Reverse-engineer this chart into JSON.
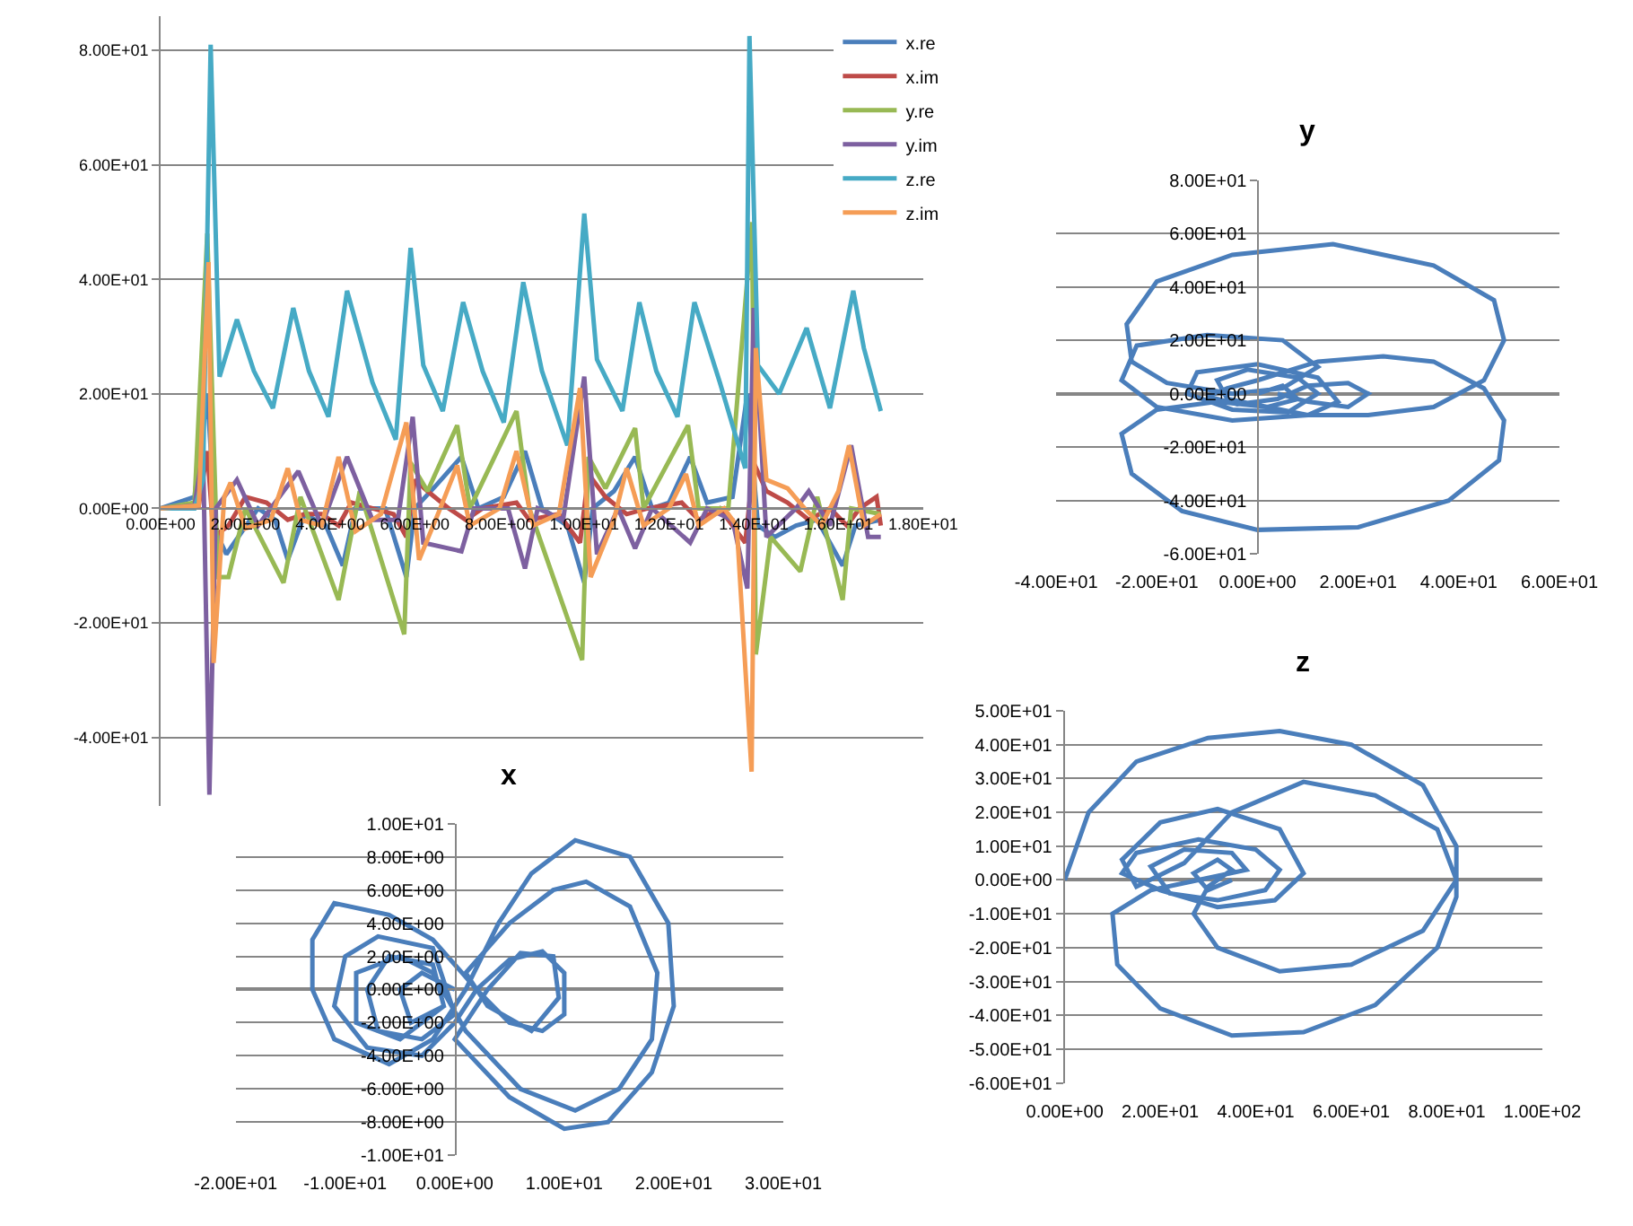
{
  "chart_data": [
    {
      "type": "line",
      "marker": "none",
      "line_style": "solid",
      "grid": "y",
      "legend": "top right",
      "xlim": [
        0,
        18
      ],
      "xticks": [
        {
          "value": 0,
          "label": "0.00E+00"
        },
        {
          "value": 2,
          "label": "2.00E+00"
        },
        {
          "value": 4,
          "label": "4.00E+00"
        },
        {
          "value": 6,
          "label": "6.00E+00"
        },
        {
          "value": 8,
          "label": "8.00E+00"
        },
        {
          "value": 10,
          "label": "1.00E+01"
        },
        {
          "value": 12,
          "label": "1.20E+01"
        },
        {
          "value": 14,
          "label": "1.40E+01"
        },
        {
          "value": 16,
          "label": "1.60E+01"
        },
        {
          "value": 18,
          "label": "1.80E+01"
        }
      ],
      "ylim": [
        -52,
        86
      ],
      "yticks": [
        {
          "value": -40,
          "label": "-4.00E+01"
        },
        {
          "value": -20,
          "label": "-2.00E+01"
        },
        {
          "value": 0,
          "label": "0.00E+00"
        },
        {
          "value": 20,
          "label": "2.00E+01"
        },
        {
          "value": 40,
          "label": "4.00E+01"
        },
        {
          "value": 60,
          "label": "6.00E+01"
        },
        {
          "value": 80,
          "label": "8.00E+01"
        }
      ],
      "series": [
        {
          "name": "x.re",
          "color": "#4a7ebb",
          "x": [
            0,
            0.8,
            1.1,
            1.3,
            1.55,
            2.3,
            2.7,
            3.0,
            3.4,
            3.9,
            4.3,
            4.6,
            5.3,
            5.8,
            6.0,
            6.5,
            7.1,
            7.5,
            8.1,
            8.6,
            9.0,
            9.6,
            10.0,
            10.2,
            10.7,
            11.2,
            11.6,
            12.0,
            12.5,
            12.9,
            13.5,
            13.85,
            14.1,
            14.5,
            15.0,
            15.5,
            16.1,
            16.4,
            17.0
          ],
          "values": [
            0,
            2,
            20,
            -4,
            -8,
            0,
            -2,
            -9,
            -1,
            -3,
            -10,
            0,
            0,
            -12,
            0,
            4,
            9,
            0,
            2,
            10,
            0,
            -3,
            -13,
            0,
            3,
            9,
            0,
            1,
            9,
            1,
            2,
            20,
            -3,
            -5,
            -3,
            -2,
            -10,
            -3,
            -2
          ]
        },
        {
          "name": "x.im",
          "color": "#be4b48",
          "x": [
            0,
            0.9,
            1.1,
            1.25,
            1.6,
            2.0,
            2.5,
            3.0,
            3.4,
            3.8,
            4.2,
            4.5,
            5.0,
            5.5,
            5.8,
            6.0,
            6.3,
            6.8,
            7.2,
            7.6,
            8.4,
            8.7,
            9.4,
            9.9,
            10.1,
            10.5,
            11.0,
            11.5,
            12.3,
            12.7,
            13.2,
            13.8,
            14.0,
            14.3,
            14.8,
            15.3,
            15.8,
            16.2,
            16.5,
            16.9,
            17.0
          ],
          "values": [
            0,
            0.5,
            10,
            -5,
            -3,
            2,
            1,
            -2,
            -1,
            -1,
            -3,
            1,
            0,
            -1,
            -5,
            5,
            3,
            0,
            -2,
            0,
            1,
            -2,
            -1,
            -6,
            6,
            2,
            -1,
            0,
            1,
            -2,
            0,
            -6,
            8,
            3,
            1,
            -2,
            0,
            -3,
            0,
            2,
            -3
          ]
        },
        {
          "name": "y.re",
          "color": "#98b954",
          "x": [
            0,
            0.8,
            1.1,
            1.35,
            1.6,
            2.0,
            2.9,
            3.3,
            4.2,
            4.7,
            5.75,
            5.9,
            6.3,
            7.0,
            7.3,
            8.4,
            8.7,
            9.95,
            10.1,
            10.5,
            11.2,
            11.4,
            12.45,
            12.7,
            13.4,
            13.96,
            14.05,
            14.4,
            15.1,
            15.5,
            16.1,
            16.3,
            17.0
          ],
          "values": [
            0,
            1,
            48,
            -12,
            -12,
            0,
            -13,
            2,
            -16,
            3,
            -22,
            8,
            3,
            14.5,
            0,
            17,
            0,
            -26.5,
            9,
            3.5,
            14,
            0,
            14.5,
            0,
            0,
            50,
            -25.5,
            -5,
            -11,
            2,
            -16,
            0,
            -1
          ]
        },
        {
          "name": "y.im",
          "color": "#7d60a0",
          "x": [
            0,
            0.8,
            1.0,
            1.15,
            1.3,
            1.8,
            2.3,
            3.25,
            3.8,
            4.4,
            5.0,
            5.6,
            5.95,
            6.2,
            7.1,
            7.4,
            8.2,
            8.6,
            8.9,
            9.5,
            10.0,
            10.3,
            10.8,
            11.2,
            11.6,
            12.5,
            12.9,
            13.5,
            13.85,
            14.0,
            14.3,
            15.0,
            15.3,
            15.8,
            16.3,
            16.7,
            17.0
          ],
          "values": [
            0,
            0.5,
            10,
            -50,
            0,
            5,
            -3,
            6.5,
            -3,
            9,
            -2,
            -2,
            16,
            -6,
            -7.5,
            0,
            0,
            -10.5,
            0,
            -2,
            23,
            -8,
            0,
            -7,
            0,
            -6,
            0,
            -2,
            -14,
            35,
            -5,
            0,
            3,
            -3,
            11,
            -5,
            -5
          ]
        },
        {
          "name": "z.re",
          "color": "#46aac5",
          "x": [
            0,
            0.8,
            1.0,
            1.18,
            1.39,
            1.8,
            2.2,
            2.65,
            3.13,
            3.5,
            3.96,
            4.4,
            5.0,
            5.55,
            5.9,
            6.2,
            6.66,
            7.14,
            7.6,
            8.1,
            8.56,
            9.0,
            9.6,
            10.0,
            10.3,
            10.9,
            11.3,
            11.7,
            12.2,
            12.6,
            13.2,
            13.8,
            13.9,
            14.1,
            14.6,
            15.25,
            15.8,
            16.35,
            16.6,
            17.0
          ],
          "values": [
            0,
            0,
            5,
            81,
            23,
            33,
            24,
            17.5,
            35,
            24,
            16,
            38,
            22,
            12,
            45.5,
            25,
            17,
            36,
            24,
            15,
            39.5,
            24,
            11,
            51.5,
            26,
            17,
            36,
            24,
            16,
            36,
            22,
            7,
            82.5,
            25,
            20,
            31.5,
            17.5,
            38,
            28,
            17
          ]
        },
        {
          "name": "z.im",
          "color": "#f59d56",
          "x": [
            0,
            0.9,
            1.13,
            1.25,
            1.5,
            1.65,
            2.0,
            2.6,
            3.0,
            3.3,
            3.8,
            4.2,
            4.6,
            5.2,
            5.8,
            6.1,
            6.6,
            7.0,
            7.3,
            8.0,
            8.4,
            8.8,
            9.4,
            9.9,
            10.15,
            10.7,
            11.0,
            11.4,
            12.0,
            12.4,
            12.7,
            13.3,
            13.6,
            13.95,
            14.05,
            14.3,
            14.8,
            15.2,
            15.6,
            16.0,
            16.25,
            16.6,
            17.0
          ],
          "values": [
            0,
            0.5,
            43,
            -27,
            2,
            4.5,
            -3.5,
            -2,
            7,
            -2,
            -3,
            9,
            -4,
            -1,
            15,
            -9,
            0,
            7.5,
            -3,
            0,
            10,
            -3,
            -1,
            21,
            -12,
            -2,
            7,
            -3,
            0,
            6,
            -3,
            0,
            -3,
            -46,
            28,
            5,
            3.5,
            0,
            -3,
            3,
            11,
            -3,
            -1
          ]
        }
      ]
    },
    {
      "type": "line",
      "title": "y",
      "marker": "none",
      "line_style": "solid",
      "grid": "y",
      "xlim": [
        -40,
        60
      ],
      "xticks": [
        {
          "value": -40,
          "label": "-4.00E+01"
        },
        {
          "value": -20,
          "label": "-2.00E+01"
        },
        {
          "value": 0,
          "label": "0.00E+00"
        },
        {
          "value": 20,
          "label": "2.00E+01"
        },
        {
          "value": 40,
          "label": "4.00E+01"
        },
        {
          "value": 60,
          "label": "6.00E+01"
        }
      ],
      "ylim": [
        -60,
        80
      ],
      "yticks": [
        {
          "value": -60,
          "label": "-6.00E+01"
        },
        {
          "value": -40,
          "label": "-4.00E+01"
        },
        {
          "value": -20,
          "label": "-2.00E+01"
        },
        {
          "value": 0,
          "label": "0.00E+00"
        },
        {
          "value": 20,
          "label": "2.00E+01"
        },
        {
          "value": 40,
          "label": "4.00E+01"
        },
        {
          "value": 60,
          "label": "6.00E+01"
        },
        {
          "value": 80,
          "label": "8.00E+01"
        }
      ],
      "series": [
        {
          "color": "#4a7ebb",
          "x": [
            0,
            5,
            8,
            2,
            -6,
            -8,
            -2,
            8,
            12,
            6,
            -5,
            -14,
            -12,
            0,
            12,
            16,
            10,
            -5,
            -20,
            -27,
            -24,
            -10,
            5,
            12,
            5,
            -5,
            -18,
            -25,
            -26,
            -20,
            -5,
            15,
            35,
            47,
            49,
            45,
            35,
            22,
            10,
            2,
            -8,
            -20,
            -27,
            -25,
            -15,
            0,
            20,
            38,
            48,
            49,
            45,
            35,
            25,
            12,
            0,
            -6,
            -10,
            -4,
            4,
            10,
            18,
            22,
            18,
            10,
            4
          ],
          "values": [
            0,
            3,
            -2,
            -5,
            -2,
            5,
            9,
            6,
            0,
            -7,
            -6,
            0,
            8,
            11,
            6,
            -3,
            -8,
            -10,
            -5,
            5,
            18,
            22,
            20,
            10,
            2,
            0,
            4,
            12,
            26,
            42,
            52,
            56,
            48,
            35,
            20,
            5,
            -5,
            -8,
            -8,
            -5,
            -3,
            -6,
            -15,
            -30,
            -44,
            -51,
            -50,
            -40,
            -25,
            -10,
            2,
            12,
            14,
            12,
            5,
            2,
            -1,
            -4,
            -2,
            3,
            4,
            0,
            -5,
            -3,
            0
          ]
        }
      ]
    },
    {
      "type": "line",
      "title": "z",
      "marker": "none",
      "line_style": "solid",
      "grid": "y",
      "xlim": [
        0,
        100
      ],
      "xticks": [
        {
          "value": 0,
          "label": "0.00E+00"
        },
        {
          "value": 20,
          "label": "2.00E+01"
        },
        {
          "value": 40,
          "label": "4.00E+01"
        },
        {
          "value": 60,
          "label": "6.00E+01"
        },
        {
          "value": 80,
          "label": "8.00E+01"
        },
        {
          "value": 100,
          "label": "1.00E+02"
        }
      ],
      "ylim": [
        -60,
        50
      ],
      "yticks": [
        {
          "value": -60,
          "label": "-6.00E+01"
        },
        {
          "value": -50,
          "label": "-5.00E+01"
        },
        {
          "value": -40,
          "label": "-4.00E+01"
        },
        {
          "value": -30,
          "label": "-3.00E+01"
        },
        {
          "value": -20,
          "label": "-2.00E+01"
        },
        {
          "value": -10,
          "label": "-1.00E+01"
        },
        {
          "value": 0,
          "label": "0.00E+00"
        },
        {
          "value": 10,
          "label": "1.00E+01"
        },
        {
          "value": 20,
          "label": "2.00E+01"
        },
        {
          "value": 30,
          "label": "3.00E+01"
        },
        {
          "value": 40,
          "label": "4.00E+01"
        },
        {
          "value": 50,
          "label": "5.00E+01"
        }
      ],
      "series": [
        {
          "color": "#4a7ebb",
          "x": [
            0,
            5,
            15,
            30,
            45,
            60,
            75,
            82,
            82,
            78,
            65,
            50,
            35,
            20,
            11,
            10,
            18,
            28,
            38,
            35,
            25,
            18,
            22,
            32,
            42,
            45,
            40,
            28,
            15,
            12,
            20,
            32,
            44,
            50,
            45,
            32,
            20,
            12,
            15,
            25,
            35,
            50,
            65,
            78,
            82,
            75,
            60,
            45,
            32,
            27,
            30,
            35,
            32,
            27,
            30,
            35
          ],
          "values": [
            0,
            20,
            35,
            42,
            44,
            40,
            28,
            10,
            -5,
            -20,
            -37,
            -45,
            -46,
            -38,
            -25,
            -10,
            -3,
            0,
            3,
            8,
            9,
            4,
            -4,
            -6,
            -3,
            3,
            9,
            12,
            8,
            2,
            -3,
            -8,
            -6,
            2,
            15,
            21,
            17,
            6,
            -2,
            5,
            20,
            29,
            25,
            15,
            0,
            -15,
            -25,
            -27,
            -20,
            -10,
            -2,
            3,
            6,
            2,
            -3,
            0
          ]
        }
      ]
    },
    {
      "type": "line",
      "title": "x",
      "marker": "none",
      "line_style": "solid",
      "grid": "y",
      "xlim": [
        -20,
        30
      ],
      "xticks": [
        {
          "value": -20,
          "label": "-2.00E+01"
        },
        {
          "value": -10,
          "label": "-1.00E+01"
        },
        {
          "value": 0,
          "label": "0.00E+00"
        },
        {
          "value": 10,
          "label": "1.00E+01"
        },
        {
          "value": 20,
          "label": "2.00E+01"
        },
        {
          "value": 30,
          "label": "3.00E+01"
        }
      ],
      "ylim": [
        -10,
        10
      ],
      "yticks": [
        {
          "value": -10,
          "label": "-1.00E+01"
        },
        {
          "value": -8,
          "label": "-8.00E+00"
        },
        {
          "value": -6,
          "label": "-6.00E+00"
        },
        {
          "value": -4,
          "label": "-4.00E+00"
        },
        {
          "value": -2,
          "label": "-2.00E+00"
        },
        {
          "value": 0,
          "label": "0.00E+00"
        },
        {
          "value": 2,
          "label": "2.00E+00"
        },
        {
          "value": 4,
          "label": "4.00E+00"
        },
        {
          "value": 6,
          "label": "6.00E+00"
        },
        {
          "value": 8,
          "label": "8.00E+00"
        },
        {
          "value": 10,
          "label": "1.00E+01"
        }
      ],
      "series": [
        {
          "color": "#4a7ebb",
          "x": [
            0,
            -3,
            -5,
            -4,
            -1,
            -2,
            -6,
            -8,
            -7,
            -3,
            0,
            -2,
            -7,
            -10,
            -11,
            -8,
            -3,
            0,
            2,
            5,
            8,
            10,
            10,
            8,
            5,
            2,
            -2,
            -6,
            -11,
            -13,
            -13,
            -11,
            -6,
            -2,
            1,
            4,
            7,
            11,
            16,
            19.5,
            20,
            18,
            14,
            10,
            5,
            0,
            3,
            6,
            9,
            9.5,
            7,
            3,
            1,
            5,
            9,
            12,
            16,
            18.5,
            18,
            15,
            11,
            6,
            1,
            -2,
            -5,
            -9,
            -9,
            -5,
            -1
          ],
          "values": [
            0,
            1,
            0,
            -2,
            -1,
            1.5,
            2,
            0,
            -2.5,
            -3,
            -1.5,
            2.5,
            3.2,
            2,
            -1,
            -3.5,
            -4,
            -2,
            0,
            1.8,
            2.3,
            1,
            -1.5,
            -2.5,
            -2,
            0,
            3,
            4.5,
            5.2,
            3,
            0,
            -3,
            -4.5,
            -3,
            0,
            4,
            7,
            9,
            8,
            4,
            -1,
            -5,
            -8,
            -8.4,
            -6.5,
            -3,
            0,
            2.2,
            2,
            -0.5,
            -2.5,
            -1,
            1,
            4,
            6,
            6.5,
            5,
            1,
            -3,
            -6,
            -7.3,
            -6,
            -2.5,
            1,
            2,
            1,
            -2,
            -3,
            -1
          ]
        }
      ]
    }
  ]
}
